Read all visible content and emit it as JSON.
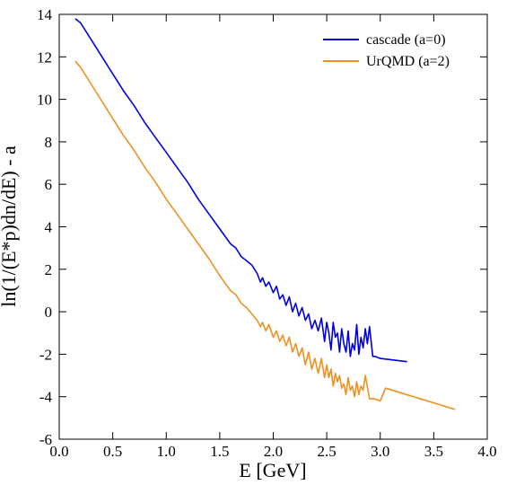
{
  "chart_data": {
    "type": "line",
    "title": "",
    "xlabel": "E [GeV]",
    "ylabel": "ln(1/(E*p)dn/dE) - a",
    "xlim": [
      0.0,
      4.0
    ],
    "ylim": [
      -6,
      14
    ],
    "grid": false,
    "legend_position": "top-right",
    "x_ticks": [
      "0.0",
      "0.5",
      "1.0",
      "1.5",
      "2.0",
      "2.5",
      "3.0",
      "3.5",
      "4.0"
    ],
    "y_ticks": [
      "-6",
      "-4",
      "-2",
      "0",
      "2",
      "4",
      "6",
      "8",
      "10",
      "12",
      "14"
    ],
    "series": [
      {
        "name": "cascade (a=0)",
        "color": "#0000dd",
        "x": [
          0.15,
          0.2,
          0.3,
          0.4,
          0.5,
          0.6,
          0.7,
          0.8,
          0.9,
          1.0,
          1.1,
          1.2,
          1.3,
          1.4,
          1.5,
          1.6,
          1.65,
          1.7,
          1.75,
          1.8,
          1.85,
          1.88,
          1.9,
          1.93,
          1.96,
          2.0,
          2.03,
          2.06,
          2.09,
          2.12,
          2.15,
          2.18,
          2.21,
          2.24,
          2.27,
          2.3,
          2.33,
          2.36,
          2.39,
          2.42,
          2.45,
          2.48,
          2.5,
          2.52,
          2.54,
          2.56,
          2.58,
          2.6,
          2.62,
          2.64,
          2.66,
          2.68,
          2.7,
          2.72,
          2.74,
          2.76,
          2.78,
          2.8,
          2.82,
          2.84,
          2.86,
          2.88,
          2.9,
          2.93,
          2.95,
          3.0,
          3.25
        ],
        "y": [
          13.8,
          13.6,
          12.8,
          12.0,
          11.2,
          10.4,
          9.7,
          8.9,
          8.2,
          7.5,
          6.8,
          6.1,
          5.3,
          4.6,
          3.9,
          3.2,
          3.0,
          2.6,
          2.4,
          2.2,
          1.8,
          1.4,
          1.6,
          1.2,
          1.4,
          0.9,
          1.2,
          0.6,
          0.8,
          0.3,
          0.7,
          0.0,
          0.4,
          -0.2,
          0.2,
          -0.4,
          -0.1,
          -0.8,
          -0.4,
          -0.9,
          -0.3,
          -1.4,
          -0.5,
          -1.0,
          -1.8,
          -0.5,
          -1.2,
          -1.0,
          -1.9,
          -0.8,
          -1.5,
          -1.9,
          -0.9,
          -2.1,
          -1.5,
          -1.8,
          -0.6,
          -2.0,
          -1.2,
          -1.7,
          -0.8,
          -1.5,
          -0.7,
          -2.1,
          -2.1,
          -2.2,
          -2.35
        ]
      },
      {
        "name": "UrQMD (a=2)",
        "color": "#f0901e",
        "x": [
          0.15,
          0.2,
          0.3,
          0.4,
          0.5,
          0.6,
          0.7,
          0.8,
          0.9,
          1.0,
          1.1,
          1.2,
          1.3,
          1.4,
          1.5,
          1.6,
          1.65,
          1.7,
          1.75,
          1.8,
          1.85,
          1.88,
          1.9,
          1.93,
          1.96,
          2.0,
          2.03,
          2.06,
          2.09,
          2.12,
          2.15,
          2.18,
          2.21,
          2.24,
          2.27,
          2.3,
          2.33,
          2.36,
          2.39,
          2.42,
          2.45,
          2.48,
          2.5,
          2.52,
          2.54,
          2.56,
          2.58,
          2.6,
          2.62,
          2.64,
          2.66,
          2.68,
          2.7,
          2.72,
          2.74,
          2.76,
          2.78,
          2.8,
          2.82,
          2.84,
          2.86,
          2.9,
          2.95,
          3.0,
          3.05,
          3.7
        ],
        "y": [
          11.8,
          11.5,
          10.7,
          9.9,
          9.1,
          8.3,
          7.6,
          6.8,
          6.1,
          5.3,
          4.6,
          3.9,
          3.2,
          2.5,
          1.7,
          1.0,
          0.8,
          0.4,
          0.2,
          -0.1,
          -0.4,
          -0.7,
          -0.5,
          -0.9,
          -0.6,
          -1.2,
          -0.9,
          -1.4,
          -1.1,
          -1.6,
          -1.2,
          -1.9,
          -1.5,
          -2.1,
          -1.7,
          -2.5,
          -1.9,
          -2.7,
          -2.2,
          -2.9,
          -2.2,
          -3.1,
          -2.5,
          -3.1,
          -2.7,
          -3.5,
          -2.9,
          -3.3,
          -3.0,
          -3.6,
          -3.4,
          -3.9,
          -3.1,
          -3.7,
          -3.5,
          -4.0,
          -3.3,
          -3.9,
          -3.5,
          -3.7,
          -3.0,
          -4.1,
          -4.1,
          -4.2,
          -3.6,
          -4.6
        ]
      }
    ]
  }
}
